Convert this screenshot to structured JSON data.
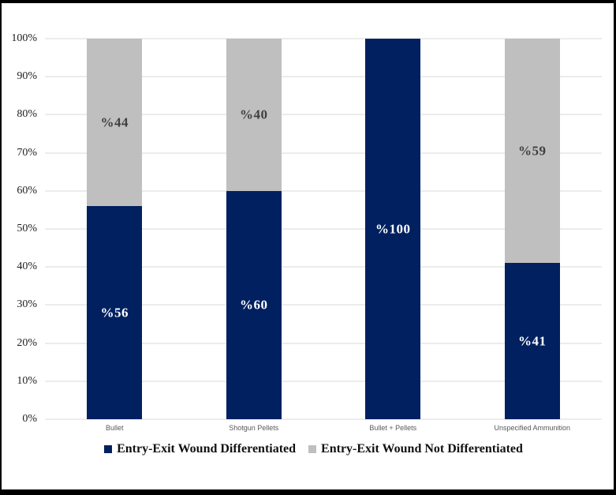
{
  "frame": {
    "border_color": "#000000",
    "background": "#ffffff"
  },
  "chart_data": {
    "type": "bar",
    "stacked": true,
    "orientation": "vertical",
    "title": "",
    "categories": [
      "Bullet",
      "Shotgun Pellets",
      "Bullet + Pellets",
      "Unspecified Ammunition"
    ],
    "series": [
      {
        "name": "Entry-Exit Wound Differentiated",
        "color": "#002060",
        "values": [
          56,
          60,
          100,
          41
        ],
        "data_labels": [
          "%56",
          "%60",
          "%100",
          "%41"
        ],
        "label_color": "#ffffff"
      },
      {
        "name": "Entry-Exit Wound Not Differentiated",
        "color": "#bfbfbf",
        "values": [
          44,
          40,
          0,
          59
        ],
        "data_labels": [
          "%44",
          "%40",
          "",
          "%59"
        ],
        "label_color": "#404040"
      }
    ],
    "y_axis": {
      "min": 0,
      "max": 100,
      "step": 10,
      "tick_labels": [
        "0%",
        "10%",
        "20%",
        "30%",
        "40%",
        "50%",
        "60%",
        "70%",
        "80%",
        "90%",
        "100%"
      ]
    },
    "grid": true,
    "gridline_color": "#d9d9d9",
    "legend_position": "bottom",
    "text_color": "#1f1f1f",
    "category_label_color": "#595959"
  }
}
